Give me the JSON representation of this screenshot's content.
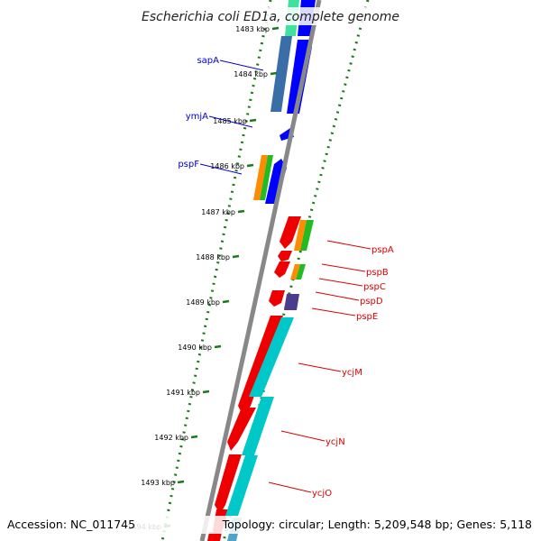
{
  "title": "Escherichia coli ED1a, complete genome",
  "footer": {
    "accession": "Accession: NC_011745",
    "stats": "Topology: circular; Length: 5,209,548 bp; Genes: 5,118"
  },
  "colors": {
    "label_left": "#0000cc",
    "label_right": "#dd0000",
    "tick": "#1a7a1a",
    "backbone": "#888888"
  },
  "ticks": [
    {
      "label": "1483 kbp"
    },
    {
      "label": "1484 kbp"
    },
    {
      "label": "1485 kbp"
    },
    {
      "label": "1486 kbp"
    },
    {
      "label": "1487 kbp"
    },
    {
      "label": "1488 kbp"
    },
    {
      "label": "1489 kbp"
    },
    {
      "label": "1490 kbp"
    },
    {
      "label": "1491 kbp"
    },
    {
      "label": "1492 kbp"
    },
    {
      "label": "1493 kbp"
    },
    {
      "label": "1494 kbp"
    }
  ],
  "genes_left": [
    {
      "name": "sapA"
    },
    {
      "name": "ymjA"
    },
    {
      "name": "pspF"
    }
  ],
  "genes_right": [
    {
      "name": "pspA"
    },
    {
      "name": "pspB"
    },
    {
      "name": "pspC"
    },
    {
      "name": "pspD"
    },
    {
      "name": "pspE"
    },
    {
      "name": "ycjM"
    },
    {
      "name": "ycjN"
    },
    {
      "name": "ycjO"
    }
  ]
}
